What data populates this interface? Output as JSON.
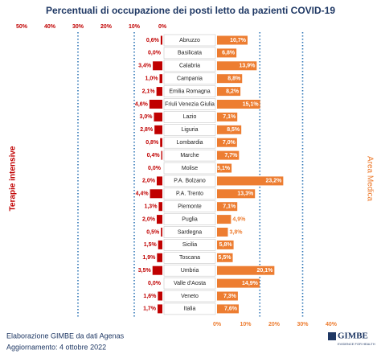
{
  "chart_data": {
    "type": "butterfly",
    "title": "Percentuali di occupazione dei posti letto da pazienti COVID-19",
    "categories": [
      "Abruzzo",
      "Basilicata",
      "Calabria",
      "Campania",
      "Emilia Romagna",
      "Friuli Venezia Giulia",
      "Lazio",
      "Liguria",
      "Lombardia",
      "Marche",
      "Molise",
      "P.A. Bolzano",
      "P.A. Trento",
      "Piemonte",
      "Puglia",
      "Sardegna",
      "Sicilia",
      "Toscana",
      "Umbria",
      "Valle d'Aosta",
      "Veneto",
      "Italia"
    ],
    "series": [
      {
        "name": "Terapie intensive",
        "color": "#c00000",
        "side": "left",
        "values": [
          0.6,
          0.0,
          3.4,
          1.0,
          2.1,
          4.6,
          3.0,
          2.8,
          0.8,
          0.4,
          0.0,
          2.0,
          4.4,
          1.3,
          2.0,
          0.5,
          1.5,
          1.9,
          3.5,
          0.0,
          1.6,
          1.7
        ],
        "value_labels": [
          "0,6%",
          "0,0%",
          "3,4%",
          "1,0%",
          "2,1%",
          "4,6%",
          "3,0%",
          "2,8%",
          "0,8%",
          "0,4%",
          "0,0%",
          "2,0%",
          "4,4%",
          "1,3%",
          "2,0%",
          "0,5%",
          "1,5%",
          "1,9%",
          "3,5%",
          "0,0%",
          "1,6%",
          "1,7%"
        ],
        "reference_lines": [
          10,
          30
        ]
      },
      {
        "name": "Area Medica",
        "color": "#ed7d31",
        "side": "right",
        "values": [
          10.7,
          6.8,
          13.9,
          8.8,
          8.2,
          15.1,
          7.1,
          8.5,
          7.0,
          7.7,
          5.1,
          23.2,
          13.3,
          7.1,
          4.9,
          3.8,
          5.8,
          5.5,
          20.1,
          14.9,
          7.3,
          7.6
        ],
        "value_labels": [
          "10,7%",
          "6,8%",
          "13,9%",
          "8,8%",
          "8,2%",
          "15,1%",
          "7,1%",
          "8,5%",
          "7,0%",
          "7,7%",
          "5,1%",
          "23,2%",
          "13,3%",
          "7,1%",
          "4,9%",
          "3,8%",
          "5,8%",
          "5,5%",
          "20,1%",
          "14,9%",
          "7,3%",
          "7,6%"
        ],
        "reference_lines": [
          15,
          30
        ]
      }
    ],
    "xlim": [
      0,
      50
    ],
    "xticks": [
      {
        "value": 50,
        "label": "50%"
      },
      {
        "value": 40,
        "label": "40%"
      },
      {
        "value": 30,
        "label": "30%"
      },
      {
        "value": 20,
        "label": "20%"
      },
      {
        "value": 10,
        "label": "10%"
      },
      {
        "value": 0,
        "label": "0%"
      }
    ],
    "x2lim": [
      0,
      40
    ],
    "x2ticks": [
      {
        "value": 0,
        "label": "0%"
      },
      {
        "value": 10,
        "label": "10%"
      },
      {
        "value": 20,
        "label": "20%"
      },
      {
        "value": 30,
        "label": "30%"
      },
      {
        "value": 40,
        "label": "40%"
      }
    ],
    "footer": [
      "Elaborazione GIMBE da dati Agenas",
      "Aggiornamento: 4 ottobre 2022"
    ],
    "logo": {
      "name": "GIMBE",
      "tagline": "EVIDENCE FOR HEALTH"
    }
  }
}
